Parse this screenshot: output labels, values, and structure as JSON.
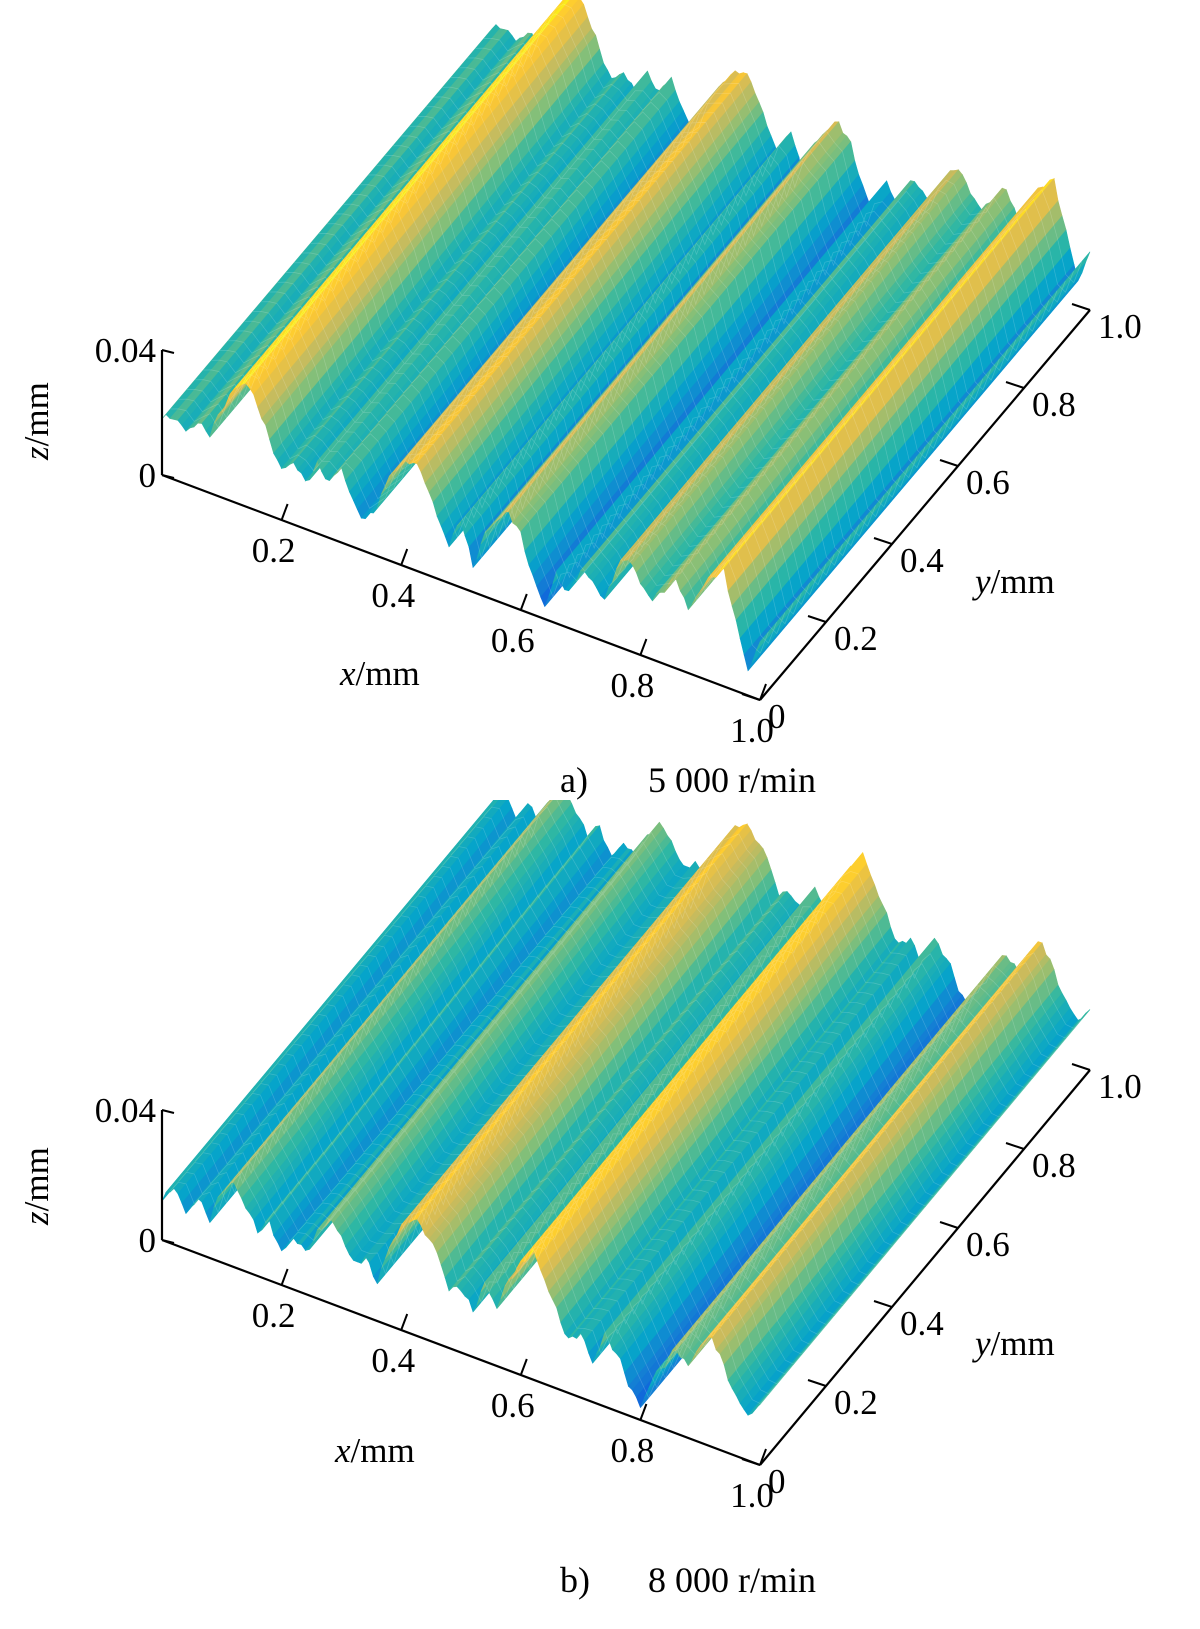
{
  "chart_data": [
    {
      "type": "surface",
      "panel": "a",
      "caption_letter": "a)",
      "caption_speed": "5 000 r/min",
      "xlabel": {
        "var": "x",
        "unit": "/mm"
      },
      "ylabel": {
        "var": "y",
        "unit": "/mm"
      },
      "zlabel": {
        "var": "z",
        "unit": "/mm"
      },
      "xlim": [
        0,
        1.0
      ],
      "ylim": [
        0,
        1.0
      ],
      "zlim": [
        0,
        0.04
      ],
      "x_ticks": [
        "0.2",
        "0.4",
        "0.6",
        "0.8",
        "1.0"
      ],
      "y_ticks": [
        "0",
        "0.2",
        "0.4",
        "0.6",
        "0.8",
        "1.0"
      ],
      "z_ticks": [
        "0",
        "0.04"
      ],
      "colormap": "parula",
      "profile_x": [
        0.0,
        0.02,
        0.04,
        0.06,
        0.08,
        0.1,
        0.12,
        0.14,
        0.16,
        0.18,
        0.2,
        0.22,
        0.24,
        0.26,
        0.28,
        0.3,
        0.32,
        0.34,
        0.36,
        0.38,
        0.4,
        0.42,
        0.44,
        0.46,
        0.48,
        0.5,
        0.52,
        0.54,
        0.56,
        0.58,
        0.6,
        0.62,
        0.64,
        0.66,
        0.68,
        0.7,
        0.72,
        0.74,
        0.76,
        0.78,
        0.8,
        0.82,
        0.84,
        0.86,
        0.88,
        0.9,
        0.92,
        0.94,
        0.96,
        0.98,
        1.0
      ],
      "profile_z": [
        0.018,
        0.02,
        0.017,
        0.021,
        0.019,
        0.028,
        0.036,
        0.04,
        0.034,
        0.024,
        0.016,
        0.02,
        0.015,
        0.022,
        0.018,
        0.024,
        0.014,
        0.01,
        0.016,
        0.027,
        0.032,
        0.035,
        0.03,
        0.02,
        0.012,
        0.022,
        0.008,
        0.02,
        0.026,
        0.03,
        0.024,
        0.012,
        0.004,
        0.016,
        0.011,
        0.02,
        0.018,
        0.013,
        0.025,
        0.03,
        0.023,
        0.019,
        0.024,
        0.029,
        0.02,
        0.028,
        0.034,
        0.037,
        0.022,
        0.008,
        0.018
      ]
    },
    {
      "type": "surface",
      "panel": "b",
      "caption_letter": "b)",
      "caption_speed": "8 000 r/min",
      "xlabel": {
        "var": "x",
        "unit": "/mm"
      },
      "ylabel": {
        "var": "y",
        "unit": "/mm"
      },
      "zlabel": {
        "var": "z",
        "unit": "/mm"
      },
      "xlim": [
        0,
        1.0
      ],
      "ylim": [
        0,
        1.0
      ],
      "zlim": [
        0,
        0.04
      ],
      "x_ticks": [
        "0.2",
        "0.4",
        "0.6",
        "0.8",
        "1.0"
      ],
      "y_ticks": [
        "0",
        "0.2",
        "0.4",
        "0.6",
        "0.8",
        "1.0"
      ],
      "z_ticks": [
        "0",
        "0.04"
      ],
      "colormap": "parula",
      "profile_x": [
        0.0,
        0.02,
        0.04,
        0.06,
        0.08,
        0.1,
        0.12,
        0.14,
        0.16,
        0.18,
        0.2,
        0.22,
        0.24,
        0.26,
        0.28,
        0.3,
        0.32,
        0.34,
        0.36,
        0.38,
        0.4,
        0.42,
        0.44,
        0.46,
        0.48,
        0.5,
        0.52,
        0.54,
        0.56,
        0.58,
        0.6,
        0.62,
        0.64,
        0.66,
        0.68,
        0.7,
        0.72,
        0.74,
        0.76,
        0.78,
        0.8,
        0.82,
        0.84,
        0.86,
        0.88,
        0.9,
        0.92,
        0.94,
        0.96,
        0.98,
        1.0
      ],
      "profile_z": [
        0.012,
        0.018,
        0.011,
        0.017,
        0.012,
        0.022,
        0.026,
        0.02,
        0.014,
        0.018,
        0.01,
        0.016,
        0.013,
        0.02,
        0.026,
        0.022,
        0.015,
        0.018,
        0.012,
        0.024,
        0.032,
        0.036,
        0.033,
        0.028,
        0.018,
        0.02,
        0.014,
        0.024,
        0.018,
        0.028,
        0.034,
        0.04,
        0.032,
        0.024,
        0.016,
        0.02,
        0.012,
        0.022,
        0.018,
        0.01,
        0.004,
        0.014,
        0.02,
        0.026,
        0.022,
        0.03,
        0.034,
        0.026,
        0.018,
        0.014,
        0.018
      ]
    }
  ]
}
